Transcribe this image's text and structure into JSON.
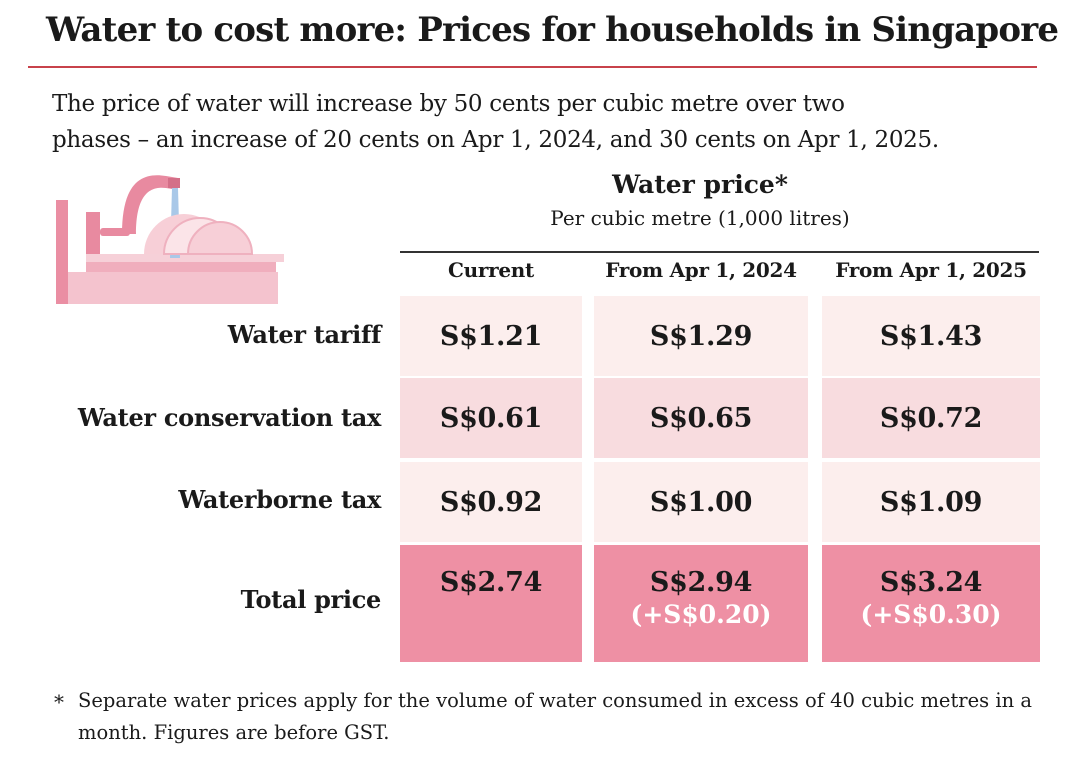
{
  "title": "Water to cost more: Prices for households in Singapore",
  "description": [
    "The price of water will increase by 50 cents per cubic metre over two",
    "phases – an increase of 20 cents on Apr 1, 2024, and 30 cents on Apr 1, 2025."
  ],
  "table": {
    "title": "Water price*",
    "subtitle": "Per cubic metre (1,000 litres)",
    "columns": [
      "Current",
      "From Apr 1, 2024",
      "From Apr 1, 2025"
    ],
    "rows": [
      {
        "label": "Water tariff",
        "values": [
          "S$1.21",
          "S$1.29",
          "S$1.43"
        ]
      },
      {
        "label": "Water conservation tax",
        "values": [
          "S$0.61",
          "S$0.65",
          "S$0.72"
        ]
      },
      {
        "label": "Waterborne tax",
        "values": [
          "S$0.92",
          "S$1.00",
          "S$1.09"
        ]
      },
      {
        "label": "Total price",
        "values": [
          "S$2.74",
          "S$2.94",
          "S$3.24"
        ],
        "changes": [
          "",
          "(+S$0.20)",
          "(+S$0.30)"
        ]
      }
    ]
  },
  "footnote": {
    "marker": "*",
    "text": "Separate water prices apply for the volume of water consumed in excess of 40 cubic metres in a month. Figures are before GST."
  },
  "colors": {
    "accent_rule": "#c8424b",
    "row_light": "#fceeed",
    "row_medium": "#f8dcdf",
    "row_total": "#ee90a4",
    "illustration_pink": "#e88aa0",
    "water_blue": "#a9c8e8"
  },
  "icons": {
    "illustration": "kitchen-sink-dish-rack-illustration"
  }
}
